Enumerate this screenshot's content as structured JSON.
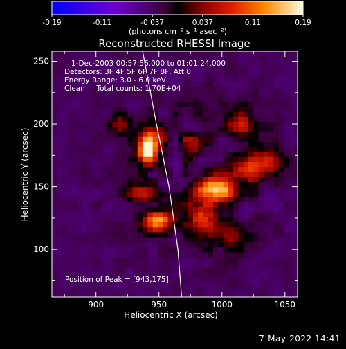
{
  "chart_data": {
    "type": "heatmap",
    "title": "Reconstructed RHESSI Image",
    "xlabel": "Heliocentric X (arcsec)",
    "ylabel": "Heliocentric Y (arcsec)",
    "xlim": [
      865,
      1060
    ],
    "ylim": [
      62,
      258
    ],
    "xticks": [
      900,
      950,
      1000,
      1050
    ],
    "yticks": [
      100,
      150,
      200,
      250
    ],
    "colorbar": {
      "min": -0.19,
      "max": 0.19,
      "ticks": [
        "-0.19",
        "-0.11",
        "-0.037",
        "0.037",
        "0.11",
        "0.19"
      ],
      "unit_label": "(photons cm⁻² s⁻¹ asec⁻²)"
    },
    "annotations": [
      "1-Dec-2003 00:57:56.000 to 01:01:24.000",
      "Detectors: 3F 4F 5F 6F 7F 8F, Att 0",
      "Energy Range: 3.0 - 6.0 keV",
      "Clean     Total counts: 1.70E+04"
    ],
    "peak_text": "Position of Peak = [943,175]",
    "peak": [
      943,
      175
    ],
    "limb_curve": [
      [
        937,
        258
      ],
      [
        948,
        200
      ],
      [
        958,
        150
      ],
      [
        965,
        100
      ],
      [
        968,
        62
      ]
    ],
    "sources": [
      {
        "x": 940,
        "y": 178,
        "sx": 5,
        "sy": 7,
        "amp": 1.0
      },
      {
        "x": 944,
        "y": 190,
        "sx": 7,
        "sy": 8,
        "amp": 0.55
      },
      {
        "x": 950,
        "y": 122,
        "sx": 8,
        "sy": 6,
        "amp": 0.8
      },
      {
        "x": 1000,
        "y": 147,
        "sx": 7,
        "sy": 7,
        "amp": 0.85
      },
      {
        "x": 985,
        "y": 147,
        "sx": 8,
        "sy": 7,
        "amp": 0.6
      },
      {
        "x": 935,
        "y": 145,
        "sx": 8,
        "sy": 6,
        "amp": 0.5
      },
      {
        "x": 1020,
        "y": 165,
        "sx": 10,
        "sy": 9,
        "amp": 0.55
      },
      {
        "x": 1015,
        "y": 200,
        "sx": 9,
        "sy": 8,
        "amp": 0.45
      },
      {
        "x": 985,
        "y": 125,
        "sx": 9,
        "sy": 8,
        "amp": 0.5
      },
      {
        "x": 1040,
        "y": 170,
        "sx": 7,
        "sy": 7,
        "amp": 0.4
      },
      {
        "x": 920,
        "y": 200,
        "sx": 7,
        "sy": 6,
        "amp": 0.35
      },
      {
        "x": 975,
        "y": 185,
        "sx": 6,
        "sy": 6,
        "amp": 0.4
      },
      {
        "x": 1005,
        "y": 110,
        "sx": 9,
        "sy": 8,
        "amp": 0.35
      }
    ]
  },
  "footer": {
    "timestamp": "7-May-2022 14:41"
  }
}
